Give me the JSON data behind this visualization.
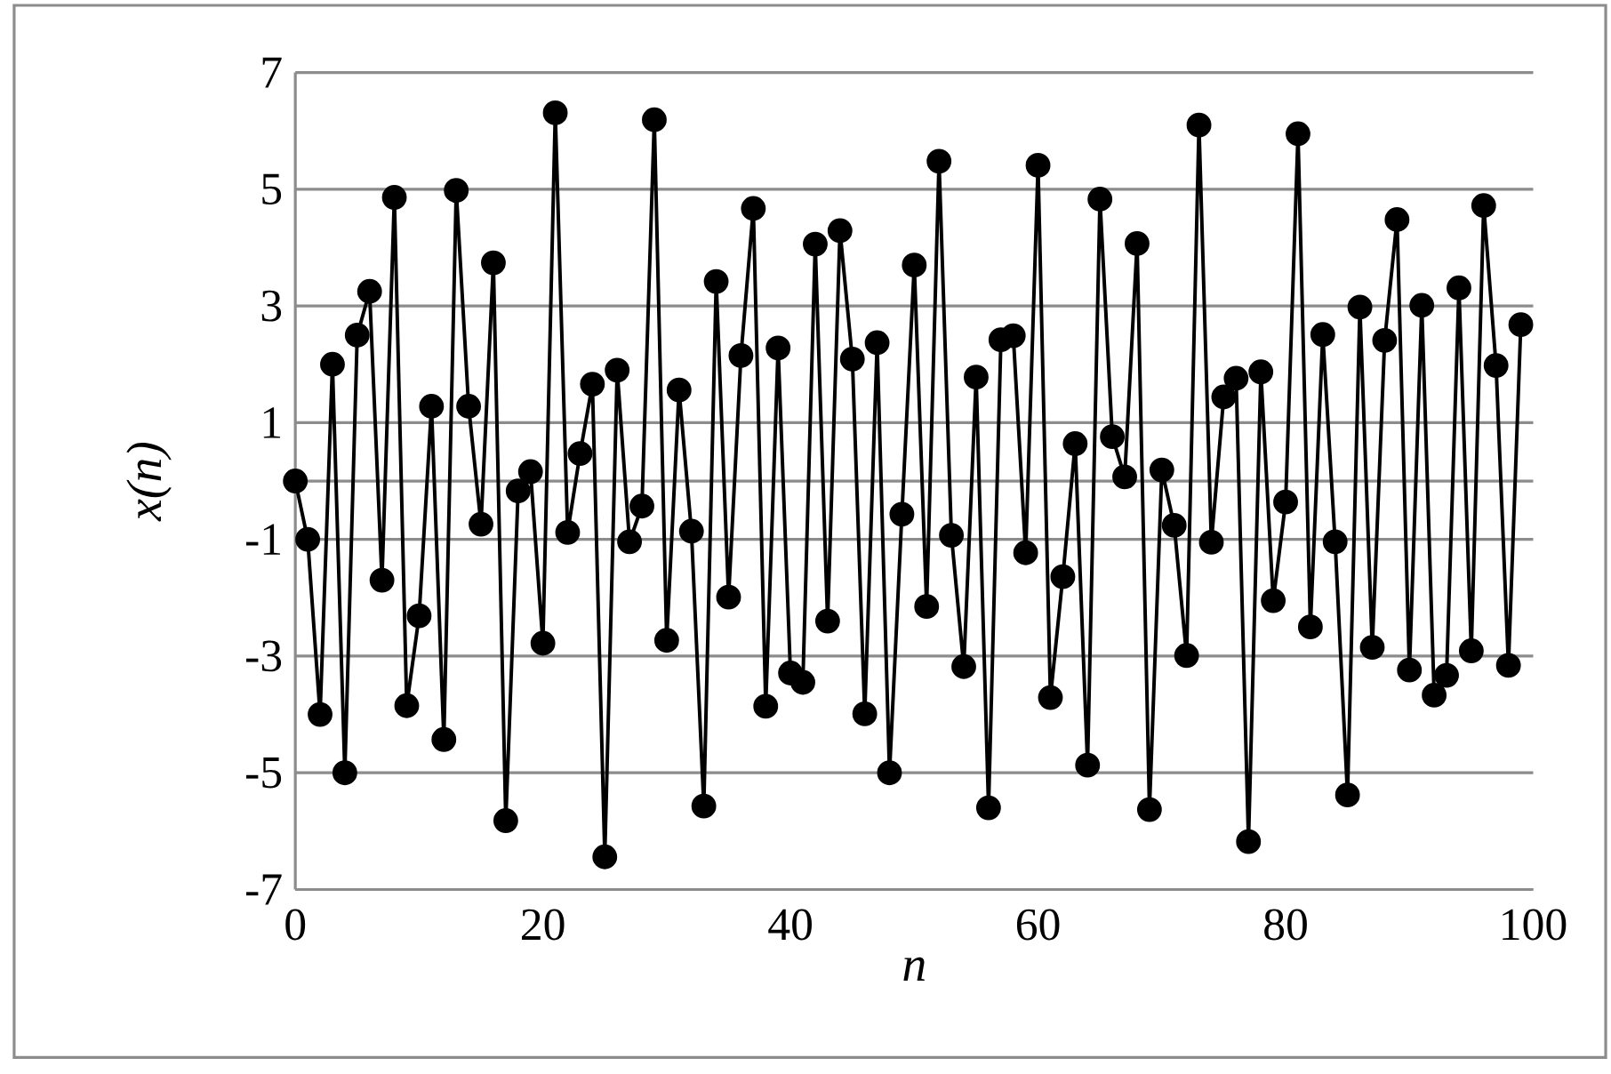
{
  "chart_data": {
    "type": "line",
    "xlabel": "n",
    "ylabel": "x(n)",
    "x": [
      0,
      1,
      2,
      3,
      4,
      5,
      6,
      7,
      8,
      9,
      10,
      11,
      12,
      13,
      14,
      15,
      16,
      17,
      18,
      19,
      20,
      21,
      22,
      23,
      24,
      25,
      26,
      27,
      28,
      29,
      30,
      31,
      32,
      33,
      34,
      35,
      36,
      37,
      38,
      39,
      40,
      41,
      42,
      43,
      44,
      45,
      46,
      47,
      48,
      49,
      50,
      51,
      52,
      53,
      54,
      55,
      56,
      57,
      58,
      59,
      60,
      61,
      62,
      63,
      64,
      65,
      66,
      67,
      68,
      69,
      70,
      71,
      72,
      73,
      74,
      75,
      76,
      77,
      78,
      79,
      80,
      81,
      82,
      83,
      84,
      85,
      86,
      87,
      88,
      89,
      90,
      91,
      92,
      93,
      94,
      95,
      96,
      97,
      98,
      99
    ],
    "values": [
      0.0,
      -1.0,
      -4.0,
      2.0,
      -5.0,
      2.5,
      3.25,
      -1.7,
      4.86,
      -3.85,
      -2.31,
      1.28,
      -4.43,
      4.98,
      1.28,
      -0.74,
      3.74,
      -5.82,
      -0.17,
      0.16,
      -2.78,
      6.31,
      -0.88,
      0.47,
      1.66,
      -6.44,
      1.9,
      -1.04,
      -0.43,
      6.19,
      -2.73,
      1.56,
      -0.86,
      -5.57,
      3.42,
      -1.99,
      2.15,
      4.67,
      -3.86,
      2.28,
      -3.29,
      -3.45,
      4.06,
      -2.4,
      4.29,
      2.09,
      -3.99,
      2.37,
      -5.0,
      -0.57,
      3.7,
      -2.15,
      5.48,
      -0.93,
      -3.18,
      1.78,
      -5.6,
      2.42,
      2.49,
      -1.23,
      5.41,
      -3.71,
      -1.64,
      0.64,
      -4.87,
      4.83,
      0.76,
      0.07,
      4.07,
      -5.63,
      0.19,
      -0.76,
      -2.99,
      6.1,
      -1.05,
      1.44,
      1.76,
      -6.18,
      1.87,
      -2.05,
      -0.36,
      5.95,
      -2.5,
      2.51,
      -1.04,
      -5.38,
      2.98,
      -2.85,
      2.41,
      4.48,
      -3.24,
      3.01,
      -3.67,
      -3.33,
      3.31,
      -2.91,
      4.72,
      1.98,
      -3.16,
      2.68
    ],
    "color": "#000000",
    "marker": "circle",
    "grid": "y",
    "xlim": [
      0,
      100
    ],
    "ylim": [
      -7,
      7
    ],
    "xticks": [
      0,
      20,
      40,
      60,
      80,
      100
    ],
    "yticks": [
      -7,
      -5,
      -3,
      -1,
      1,
      3,
      5,
      7
    ]
  }
}
